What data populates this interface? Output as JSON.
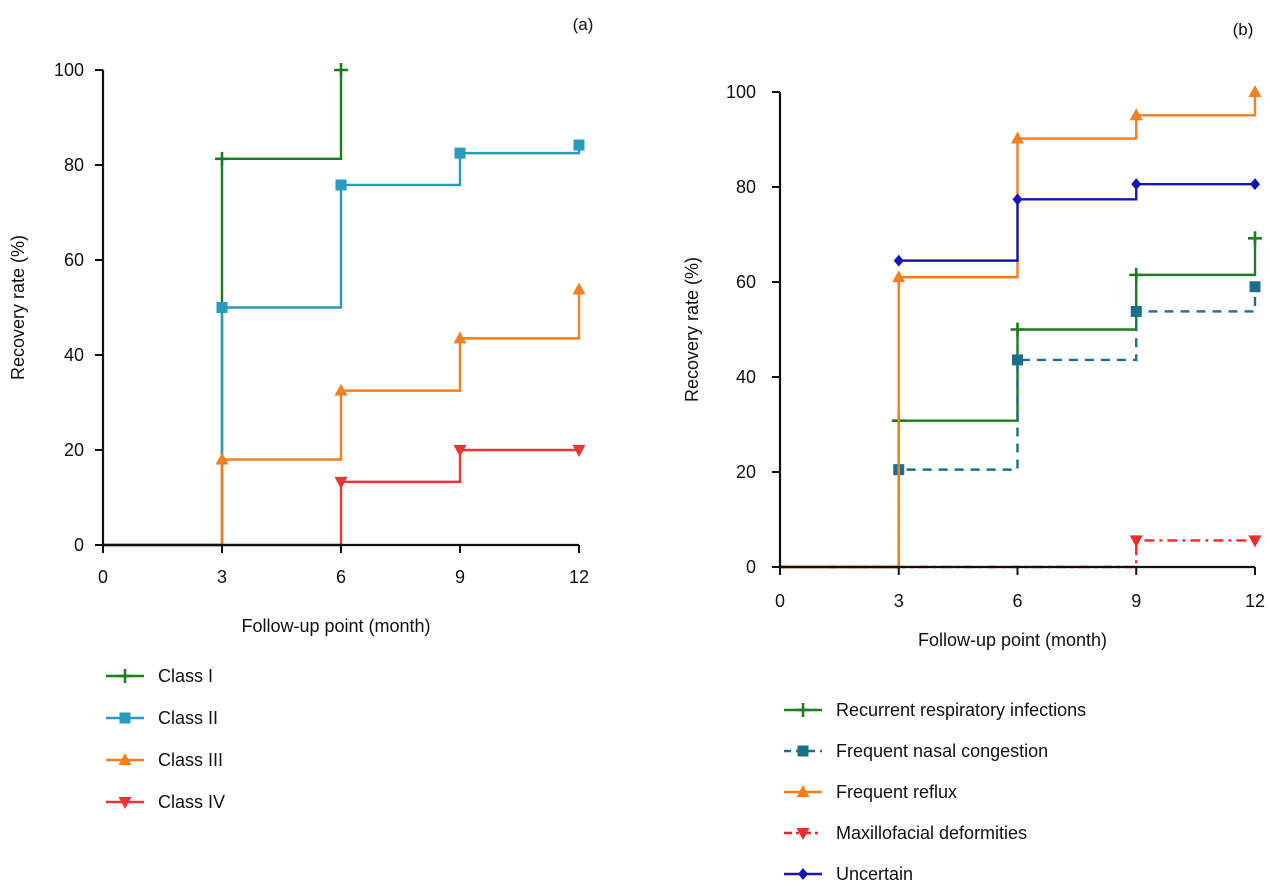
{
  "chart_data": [
    {
      "type": "line",
      "step": true,
      "panel_label": "(a)",
      "xlabel": "Follow-up point (month)",
      "ylabel": "Recovery rate (%)",
      "xlim": [
        0,
        12
      ],
      "ylim": [
        0,
        100
      ],
      "xticks": [
        0,
        3,
        6,
        9,
        12
      ],
      "yticks": [
        0,
        20,
        40,
        60,
        80,
        100
      ],
      "legend_position": "bottom",
      "series": [
        {
          "name": "Class I",
          "color": "#1e7d1e",
          "marker": "plus",
          "dash": "solid",
          "x": [
            0,
            3,
            6
          ],
          "y": [
            0,
            81.3,
            100
          ]
        },
        {
          "name": "Class II",
          "color": "#2a9bbd",
          "marker": "square",
          "dash": "solid",
          "x": [
            0,
            3,
            6,
            9,
            12
          ],
          "y": [
            0,
            50,
            75.8,
            82.5,
            84.2
          ]
        },
        {
          "name": "Class III",
          "color": "#f57f20",
          "marker": "triangle-up",
          "dash": "solid",
          "x": [
            0,
            3,
            6,
            9,
            12
          ],
          "y": [
            0,
            18,
            32.5,
            43.5,
            53.8
          ]
        },
        {
          "name": "Class IV",
          "color": "#ee3337",
          "marker": "triangle-down",
          "dash": "solid",
          "x": [
            0,
            6,
            9,
            12
          ],
          "y": [
            0,
            13.3,
            20,
            20
          ]
        }
      ]
    },
    {
      "type": "line",
      "step": true,
      "panel_label": "(b)",
      "xlabel": "Follow-up point (month)",
      "ylabel": "Recovery rate (%)",
      "xlim": [
        0,
        12
      ],
      "ylim": [
        0,
        100
      ],
      "xticks": [
        0,
        3,
        6,
        9,
        12
      ],
      "yticks": [
        0,
        20,
        40,
        60,
        80,
        100
      ],
      "legend_position": "bottom",
      "series": [
        {
          "name": "Recurrent respiratory infections",
          "color": "#1e7d1e",
          "marker": "plus",
          "dash": "solid",
          "x": [
            0,
            3,
            6,
            9,
            12
          ],
          "y": [
            0,
            30.8,
            50,
            61.5,
            69.2
          ]
        },
        {
          "name": "Frequent nasal congestion",
          "color": "#1a6f8f",
          "marker": "square",
          "dash": "dashed",
          "x": [
            0,
            3,
            6,
            9,
            12
          ],
          "y": [
            0,
            20.5,
            43.6,
            53.8,
            59
          ]
        },
        {
          "name": "Frequent reflux",
          "color": "#f57f20",
          "marker": "triangle-up",
          "dash": "solid",
          "x": [
            0,
            3,
            6,
            9,
            12
          ],
          "y": [
            0,
            61,
            90.2,
            95.1,
            100
          ]
        },
        {
          "name": "Maxillofacial deformities",
          "color": "#ee2a2a",
          "marker": "triangle-down",
          "dash": "dashdot",
          "x": [
            0,
            9,
            12
          ],
          "y": [
            0,
            5.6,
            5.6
          ]
        },
        {
          "name": "Uncertain",
          "color": "#1616b8",
          "marker": "diamond",
          "dash": "solid",
          "x": [
            3,
            6,
            9,
            12
          ],
          "y": [
            64.5,
            77.4,
            80.6,
            80.6
          ]
        }
      ]
    }
  ]
}
